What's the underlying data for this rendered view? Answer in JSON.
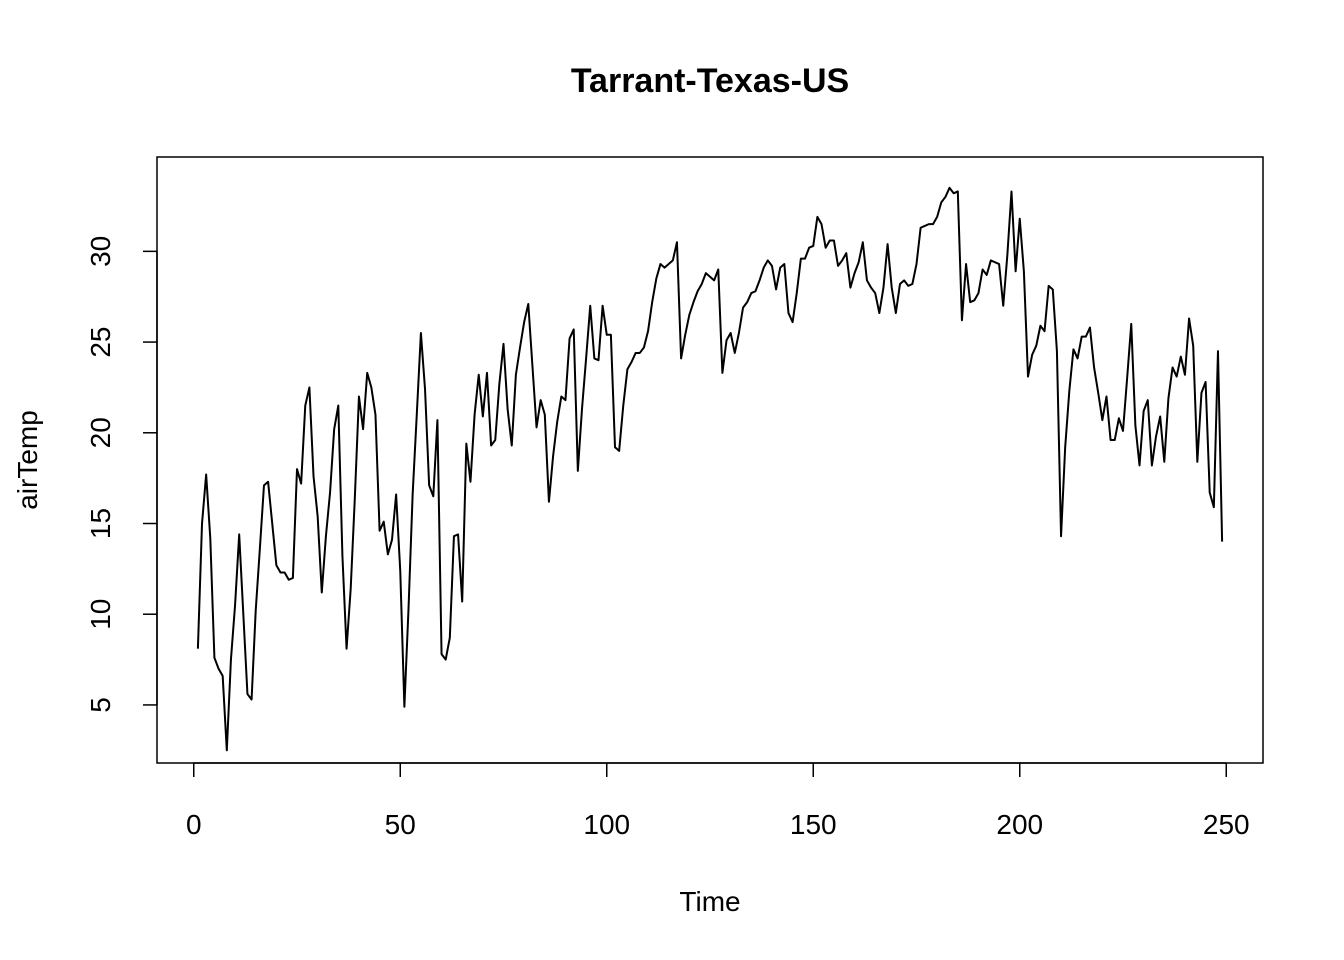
{
  "chart_data": {
    "type": "line",
    "title": "Tarrant-Texas-US",
    "xlabel": "Time",
    "ylabel": "airTemp",
    "xlim": [
      -8.9,
      258.9
    ],
    "ylim": [
      1.8,
      35.2
    ],
    "x_ticks": [
      0,
      50,
      100,
      150,
      200,
      250
    ],
    "y_ticks": [
      5,
      10,
      15,
      20,
      25,
      30
    ],
    "grid": false,
    "legend": "none",
    "line_color": "#000000",
    "series": [
      {
        "values": [
          8.1,
          15.0,
          17.7,
          14.2,
          7.6,
          7.0,
          6.6,
          2.5,
          7.5,
          10.5,
          14.4,
          10.0,
          5.6,
          5.3,
          10.2,
          13.6,
          17.1,
          17.3,
          15.0,
          12.7,
          12.3,
          12.3,
          11.9,
          12.0,
          18.0,
          17.2,
          21.5,
          22.5,
          17.6,
          15.4,
          11.2,
          14.3,
          16.7,
          20.2,
          21.5,
          13.2,
          8.1,
          11.4,
          16.4,
          22.0,
          20.2,
          23.3,
          22.5,
          21.0,
          14.6,
          15.1,
          13.3,
          14.1,
          16.6,
          12.4,
          4.9,
          10.3,
          16.6,
          21.0,
          25.5,
          22.4,
          17.1,
          16.5,
          20.7,
          7.8,
          7.5,
          8.7,
          14.3,
          14.4,
          10.7,
          19.4,
          17.3,
          21.0,
          23.2,
          20.9,
          23.3,
          19.3,
          19.6,
          22.7,
          24.9,
          21.3,
          19.3,
          23.2,
          24.7,
          26.1,
          27.1,
          23.7,
          20.3,
          21.8,
          21.0,
          16.2,
          18.7,
          20.6,
          22.0,
          21.8,
          25.2,
          25.7,
          17.9,
          21.3,
          24.1,
          27.0,
          24.1,
          24.0,
          27.0,
          25.4,
          25.4,
          19.2,
          19.0,
          21.5,
          23.5,
          23.9,
          24.4,
          24.4,
          24.7,
          25.6,
          27.2,
          28.5,
          29.3,
          29.1,
          29.3,
          29.5,
          30.5,
          24.1,
          25.4,
          26.5,
          27.2,
          27.8,
          28.2,
          28.8,
          28.6,
          28.4,
          29.0,
          23.3,
          25.1,
          25.5,
          24.4,
          25.5,
          26.9,
          27.2,
          27.7,
          27.8,
          28.4,
          29.1,
          29.5,
          29.2,
          27.9,
          29.1,
          29.3,
          26.6,
          26.1,
          27.7,
          29.6,
          29.6,
          30.2,
          30.3,
          31.9,
          31.5,
          30.2,
          30.6,
          30.6,
          29.2,
          29.5,
          29.9,
          28.0,
          28.8,
          29.4,
          30.5,
          28.4,
          28.0,
          27.7,
          26.6,
          28.0,
          30.4,
          28.0,
          26.6,
          28.2,
          28.4,
          28.1,
          28.2,
          29.3,
          31.3,
          31.4,
          31.5,
          31.5,
          31.9,
          32.7,
          33.0,
          33.5,
          33.2,
          33.3,
          26.2,
          29.3,
          27.2,
          27.3,
          27.7,
          29.0,
          28.7,
          29.5,
          29.4,
          29.3,
          27.0,
          29.8,
          33.3,
          28.9,
          31.8,
          28.9,
          23.1,
          24.3,
          24.8,
          25.9,
          25.6,
          28.1,
          27.9,
          24.5,
          14.3,
          19.2,
          22.3,
          24.6,
          24.1,
          25.3,
          25.3,
          25.8,
          23.6,
          22.2,
          20.7,
          22.0,
          19.6,
          19.6,
          20.8,
          20.1,
          23.0,
          26.0,
          20.4,
          18.2,
          21.2,
          21.8,
          18.2,
          19.8,
          20.9,
          18.4,
          21.9,
          23.6,
          23.1,
          24.2,
          23.2,
          26.3,
          24.8,
          18.4,
          22.2,
          22.8,
          16.7,
          15.9,
          24.5,
          14.0
        ]
      }
    ]
  }
}
